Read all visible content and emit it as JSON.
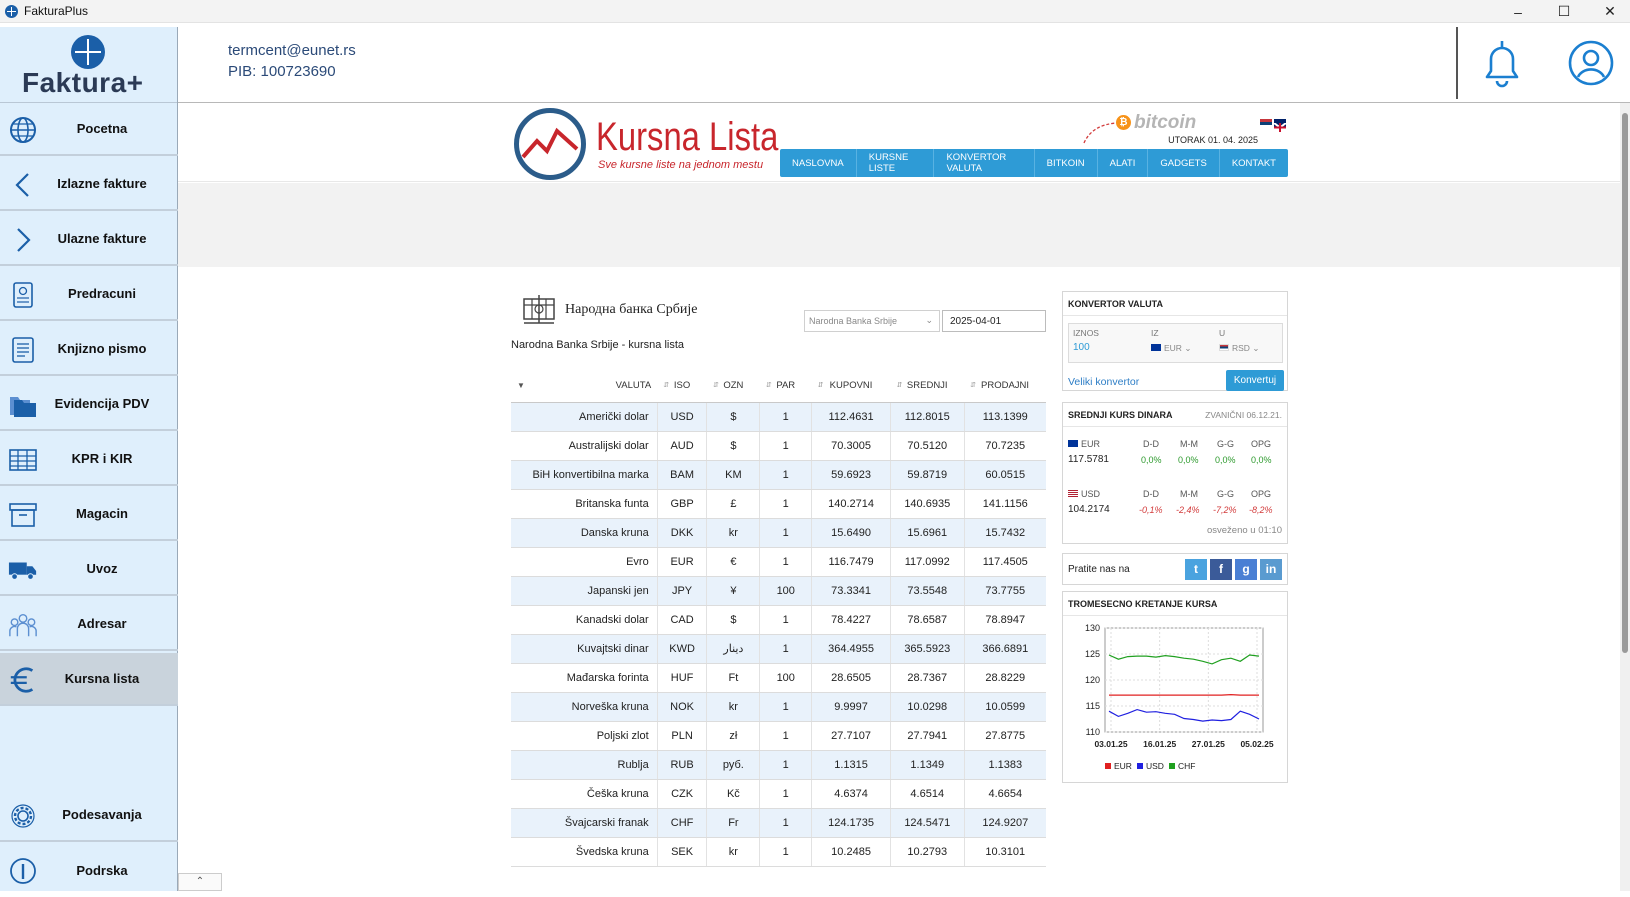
{
  "window": {
    "title": "FakturaPlus"
  },
  "sidebar": {
    "logo_text": "Faktura+",
    "items": [
      {
        "label": "Pocetna",
        "icon": "globe-icon"
      },
      {
        "label": "Izlazne fakture",
        "icon": "chevron-left-icon"
      },
      {
        "label": "Ulazne fakture",
        "icon": "chevron-right-icon"
      },
      {
        "label": "Predracuni",
        "icon": "invoice-icon"
      },
      {
        "label": "Knjizno pismo",
        "icon": "document-icon"
      },
      {
        "label": "Evidencija PDV",
        "icon": "folders-icon"
      },
      {
        "label": "KPR i KIR",
        "icon": "table-icon"
      },
      {
        "label": "Magacin",
        "icon": "archive-box-icon"
      },
      {
        "label": "Uvoz",
        "icon": "truck-icon"
      },
      {
        "label": "Adresar",
        "icon": "people-icon"
      },
      {
        "label": "Kursna lista",
        "icon": "euro-icon",
        "active": true
      },
      {
        "label": "Podesavanja",
        "icon": "gear-icon"
      },
      {
        "label": "Podrska",
        "icon": "info-icon"
      }
    ]
  },
  "header": {
    "email": "termcent@eunet.rs",
    "pib": "PIB: 100723690"
  },
  "site": {
    "title": "Kursna Lista",
    "tagline": "Sve kursne liste na jednom mestu",
    "bitcoin": "bitcoin",
    "date": "UTORAK 01. 04. 2025",
    "nav": [
      "NASLOVNA",
      "KURSNE LISTE",
      "KONVERTOR VALUTA",
      "BITKOIN",
      "ALATI",
      "GADGETS",
      "KONTAKT"
    ]
  },
  "nbs": {
    "title": "Народна банка Србије",
    "subtitle": "Narodna Banka Srbije - kursna lista",
    "bank_select": "Narodna Banka Srbije",
    "date": "2025-04-01",
    "columns": [
      "VALUTA",
      "ISO",
      "OZN",
      "PAR",
      "KUPOVNI",
      "SREDNJI",
      "PRODAJNI"
    ],
    "rows": [
      [
        "Američki dolar",
        "USD",
        "$",
        "1",
        "112.4631",
        "112.8015",
        "113.1399"
      ],
      [
        "Australijski dolar",
        "AUD",
        "$",
        "1",
        "70.3005",
        "70.5120",
        "70.7235"
      ],
      [
        "BiH konvertibilna marka",
        "BAM",
        "KM",
        "1",
        "59.6923",
        "59.8719",
        "60.0515"
      ],
      [
        "Britanska funta",
        "GBP",
        "£",
        "1",
        "140.2714",
        "140.6935",
        "141.1156"
      ],
      [
        "Danska kruna",
        "DKK",
        "kr",
        "1",
        "15.6490",
        "15.6961",
        "15.7432"
      ],
      [
        "Evro",
        "EUR",
        "€",
        "1",
        "116.7479",
        "117.0992",
        "117.4505"
      ],
      [
        "Japanski jen",
        "JPY",
        "¥",
        "100",
        "73.3341",
        "73.5548",
        "73.7755"
      ],
      [
        "Kanadski dolar",
        "CAD",
        "$",
        "1",
        "78.4227",
        "78.6587",
        "78.8947"
      ],
      [
        "Kuvajtski dinar",
        "KWD",
        "دينار",
        "1",
        "364.4955",
        "365.5923",
        "366.6891"
      ],
      [
        "Mađarska forinta",
        "HUF",
        "Ft",
        "100",
        "28.6505",
        "28.7367",
        "28.8229"
      ],
      [
        "Norveška kruna",
        "NOK",
        "kr",
        "1",
        "9.9997",
        "10.0298",
        "10.0599"
      ],
      [
        "Poljski zlot",
        "PLN",
        "zł",
        "1",
        "27.7107",
        "27.7941",
        "27.8775"
      ],
      [
        "Rublja",
        "RUB",
        "руб.",
        "1",
        "1.1315",
        "1.1349",
        "1.1383"
      ],
      [
        "Češka kruna",
        "CZK",
        "Kč",
        "1",
        "4.6374",
        "4.6514",
        "4.6654"
      ],
      [
        "Švajcarski franak",
        "CHF",
        "Fr",
        "1",
        "124.1735",
        "124.5471",
        "124.9207"
      ],
      [
        "Švedska kruna",
        "SEK",
        "kr",
        "1",
        "10.2485",
        "10.2793",
        "10.3101"
      ]
    ]
  },
  "converter": {
    "title": "KONVERTOR VALUTA",
    "amount_label": "IZNOS",
    "amount": "100",
    "from_label": "IZ",
    "from": "EUR",
    "to_label": "U",
    "to": "RSD",
    "link": "Veliki konvertor",
    "button": "Konvertuj"
  },
  "srednji": {
    "title": "SREDNJI KURS DINARA",
    "official": "ZVANIČNI 06.12.21.",
    "labels": [
      "D-D",
      "M-M",
      "G-G",
      "OPG"
    ],
    "eur": {
      "code": "EUR",
      "value": "117.5781",
      "changes": [
        "0,0%",
        "0,0%",
        "0,0%",
        "0,0%"
      ]
    },
    "usd": {
      "code": "USD",
      "value": "104.2174",
      "changes": [
        "-0,1%",
        "-2,4%",
        "-7,2%",
        "-8,2%"
      ]
    },
    "refreshed": "osveženo u 01:10"
  },
  "follow": {
    "label": "Pratite nas na",
    "networks": [
      "t",
      "f",
      "g",
      "in"
    ]
  },
  "trend": {
    "title": "TROMESECNO KRETANJE KURSA"
  },
  "chart_data": {
    "type": "line",
    "title": "TROMESECNO KRETANJE KURSA",
    "x_ticks": [
      "03.01.25",
      "16.01.25",
      "27.01.25",
      "05.02.25"
    ],
    "y_ticks": [
      110,
      115,
      120,
      125,
      130
    ],
    "ylim": [
      110,
      130
    ],
    "grid": true,
    "legend": "bottom",
    "series": [
      {
        "name": "EUR",
        "color": "#e02020",
        "values": [
          117.1,
          117.1,
          117.1,
          117.1,
          117.1,
          117.1,
          117.1,
          117.1,
          117.1,
          117.1,
          117.1,
          117.1,
          117.1,
          117.2,
          117.1,
          117.1,
          117.1
        ]
      },
      {
        "name": "USD",
        "color": "#2020e0",
        "values": [
          114.0,
          113.0,
          113.6,
          114.3,
          113.8,
          113.9,
          113.6,
          113.4,
          112.6,
          112.4,
          112.1,
          112.3,
          112.2,
          112.4,
          114.0,
          113.4,
          112.5
        ]
      },
      {
        "name": "CHF",
        "color": "#20a020",
        "values": [
          124.8,
          124.0,
          124.5,
          124.6,
          124.6,
          124.4,
          124.7,
          124.5,
          124.2,
          124.0,
          123.6,
          123.1,
          123.9,
          124.2,
          123.6,
          124.8,
          124.6
        ]
      }
    ]
  }
}
